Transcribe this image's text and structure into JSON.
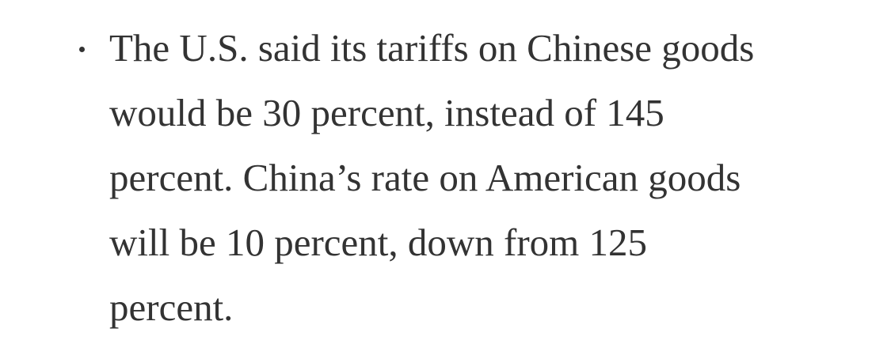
{
  "bullet": {
    "lines": [
      "The U.S. said its tariffs on Chinese goods",
      "would be 30 percent, instead of 145",
      "percent. China’s rate on American goods",
      "will be 10 percent, down from 125",
      "percent."
    ]
  }
}
